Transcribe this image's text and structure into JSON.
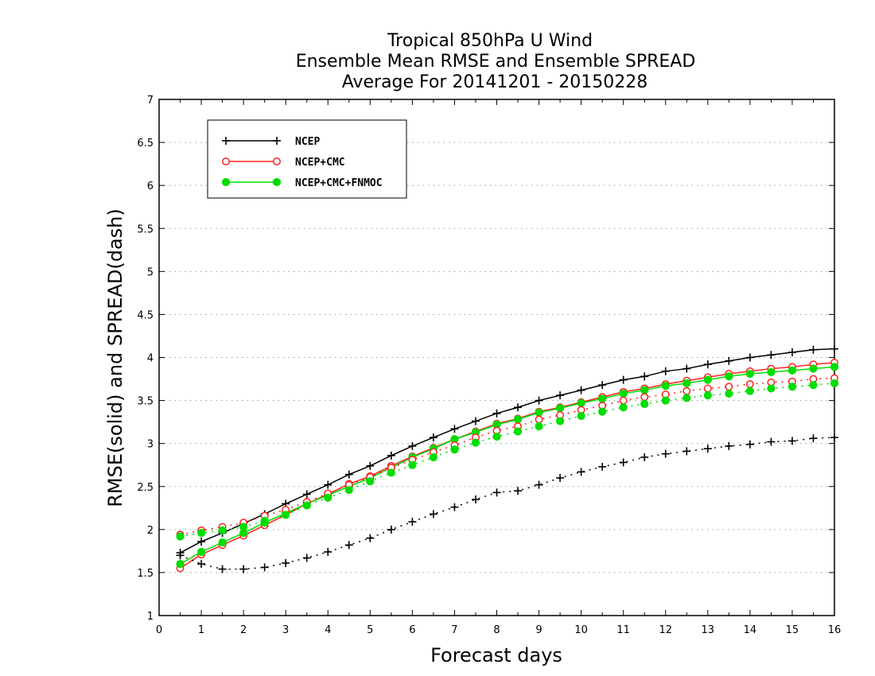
{
  "chart_data": {
    "type": "line",
    "title": [
      "Tropical 850hPa U Wind",
      "Ensemble Mean RMSE and Ensemble SPREAD",
      "Average For 20141201 - 20150228"
    ],
    "xlabel": "Forecast days",
    "ylabel": "RMSE(solid) and SPREAD(dash)",
    "xlim": [
      0,
      16
    ],
    "ylim": [
      1,
      7
    ],
    "xticks": [
      "0",
      "1",
      "2",
      "3",
      "4",
      "5",
      "6",
      "7",
      "8",
      "9",
      "10",
      "11",
      "12",
      "13",
      "14",
      "15",
      "16"
    ],
    "yticks": [
      "1",
      "1.5",
      "2",
      "2.5",
      "3",
      "3.5",
      "4",
      "4.5",
      "5",
      "5.5",
      "6",
      "6.5",
      "7"
    ],
    "grid": "horizontal dotted",
    "legend_position": "top-left",
    "x": [
      0.5,
      1,
      1.5,
      2,
      2.5,
      3,
      3.5,
      4,
      4.5,
      5,
      5.5,
      6,
      6.5,
      7,
      7.5,
      8,
      8.5,
      9,
      9.5,
      10,
      10.5,
      11,
      11.5,
      12,
      12.5,
      13,
      13.5,
      14,
      14.5,
      15,
      15.5,
      16
    ],
    "series": [
      {
        "name": "NCEP",
        "style": "solid",
        "marker": "plus",
        "color": "#000000",
        "values": [
          1.73,
          1.86,
          1.96,
          2.07,
          2.18,
          2.3,
          2.41,
          2.52,
          2.64,
          2.74,
          2.86,
          2.97,
          3.07,
          3.17,
          3.26,
          3.35,
          3.42,
          3.5,
          3.56,
          3.62,
          3.68,
          3.74,
          3.78,
          3.84,
          3.87,
          3.92,
          3.96,
          4.0,
          4.03,
          4.06,
          4.09,
          4.1
        ]
      },
      {
        "name": "NCEP+CMC",
        "style": "solid",
        "marker": "open-circle",
        "color": "#ff2020",
        "values": [
          1.55,
          1.71,
          1.82,
          1.93,
          2.05,
          2.17,
          2.3,
          2.41,
          2.53,
          2.62,
          2.74,
          2.85,
          2.95,
          3.05,
          3.14,
          3.23,
          3.29,
          3.37,
          3.42,
          3.48,
          3.54,
          3.6,
          3.64,
          3.69,
          3.73,
          3.77,
          3.81,
          3.84,
          3.87,
          3.89,
          3.92,
          3.94
        ]
      },
      {
        "name": "NCEP+CMC+FNMOC",
        "style": "solid",
        "marker": "filled-circle",
        "color": "#00dd00",
        "values": [
          1.6,
          1.74,
          1.85,
          1.96,
          2.08,
          2.19,
          2.3,
          2.4,
          2.5,
          2.6,
          2.72,
          2.84,
          2.94,
          3.05,
          3.13,
          3.22,
          3.28,
          3.36,
          3.41,
          3.47,
          3.52,
          3.58,
          3.62,
          3.67,
          3.7,
          3.74,
          3.78,
          3.81,
          3.83,
          3.85,
          3.87,
          3.89
        ]
      },
      {
        "name": "NCEP",
        "style": "dashed",
        "marker": "plus",
        "color": "#000000",
        "values": [
          1.7,
          1.6,
          1.54,
          1.54,
          1.56,
          1.61,
          1.67,
          1.74,
          1.82,
          1.9,
          2.0,
          2.09,
          2.18,
          2.26,
          2.35,
          2.43,
          2.45,
          2.52,
          2.6,
          2.67,
          2.73,
          2.78,
          2.84,
          2.88,
          2.91,
          2.94,
          2.97,
          2.99,
          3.02,
          3.03,
          3.06,
          3.07
        ]
      },
      {
        "name": "NCEP+CMC",
        "style": "dashed",
        "marker": "open-circle",
        "color": "#ff2020",
        "values": [
          1.94,
          1.99,
          2.03,
          2.08,
          2.16,
          2.23,
          2.32,
          2.42,
          2.52,
          2.61,
          2.72,
          2.81,
          2.9,
          2.98,
          3.07,
          3.15,
          3.2,
          3.28,
          3.33,
          3.39,
          3.44,
          3.5,
          3.54,
          3.57,
          3.61,
          3.64,
          3.66,
          3.69,
          3.71,
          3.72,
          3.75,
          3.76
        ]
      },
      {
        "name": "NCEP+CMC+FNMOC",
        "style": "dashed",
        "marker": "filled-circle",
        "color": "#00dd00",
        "values": [
          1.92,
          1.96,
          1.99,
          2.03,
          2.1,
          2.17,
          2.28,
          2.37,
          2.46,
          2.56,
          2.66,
          2.75,
          2.84,
          2.93,
          3.01,
          3.08,
          3.14,
          3.2,
          3.26,
          3.32,
          3.37,
          3.42,
          3.46,
          3.5,
          3.53,
          3.56,
          3.58,
          3.61,
          3.64,
          3.66,
          3.68,
          3.7
        ]
      }
    ]
  }
}
